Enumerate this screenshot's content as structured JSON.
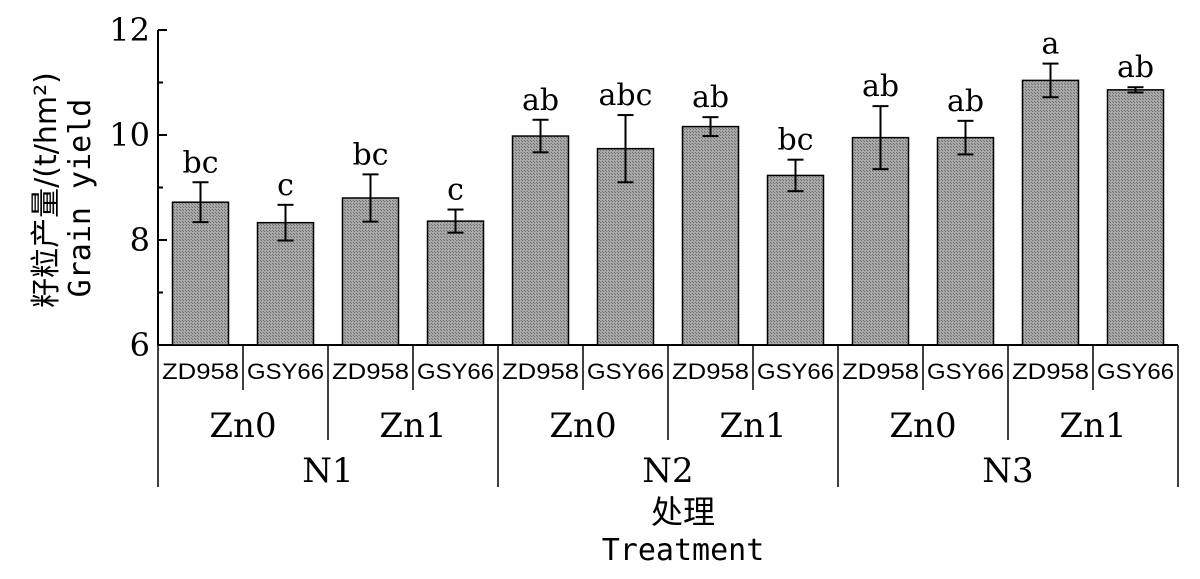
{
  "chart_data": {
    "type": "bar",
    "ylabel_cn": "籽粒产量/(t/hm²)",
    "ylabel_en": "Grain yield",
    "xlabel_cn": "处理",
    "xlabel_en": "Treatment",
    "ylim": [
      6,
      12
    ],
    "yticks": [
      "6",
      "8",
      "10",
      "12"
    ],
    "categories": [
      "ZD958",
      "GSY66",
      "ZD958",
      "GSY66",
      "ZD958",
      "GSY66",
      "ZD958",
      "GSY66",
      "ZD958",
      "GSY66",
      "ZD958",
      "GSY66"
    ],
    "zn_groups": [
      "Zn0",
      "Zn1",
      "Zn0",
      "Zn1",
      "Zn0",
      "Zn1"
    ],
    "n_groups": [
      "N1",
      "N2",
      "N3"
    ],
    "values": [
      8.72,
      8.33,
      8.8,
      8.36,
      9.98,
      9.74,
      10.16,
      9.23,
      9.95,
      9.95,
      11.04,
      10.86
    ],
    "errors": [
      0.38,
      0.34,
      0.45,
      0.22,
      0.31,
      0.64,
      0.18,
      0.3,
      0.6,
      0.32,
      0.32,
      0.05
    ],
    "significance": [
      "bc",
      "c",
      "bc",
      "c",
      "ab",
      "abc",
      "ab",
      "bc",
      "ab",
      "ab",
      "a",
      "ab"
    ],
    "bar_color": "#999999"
  }
}
